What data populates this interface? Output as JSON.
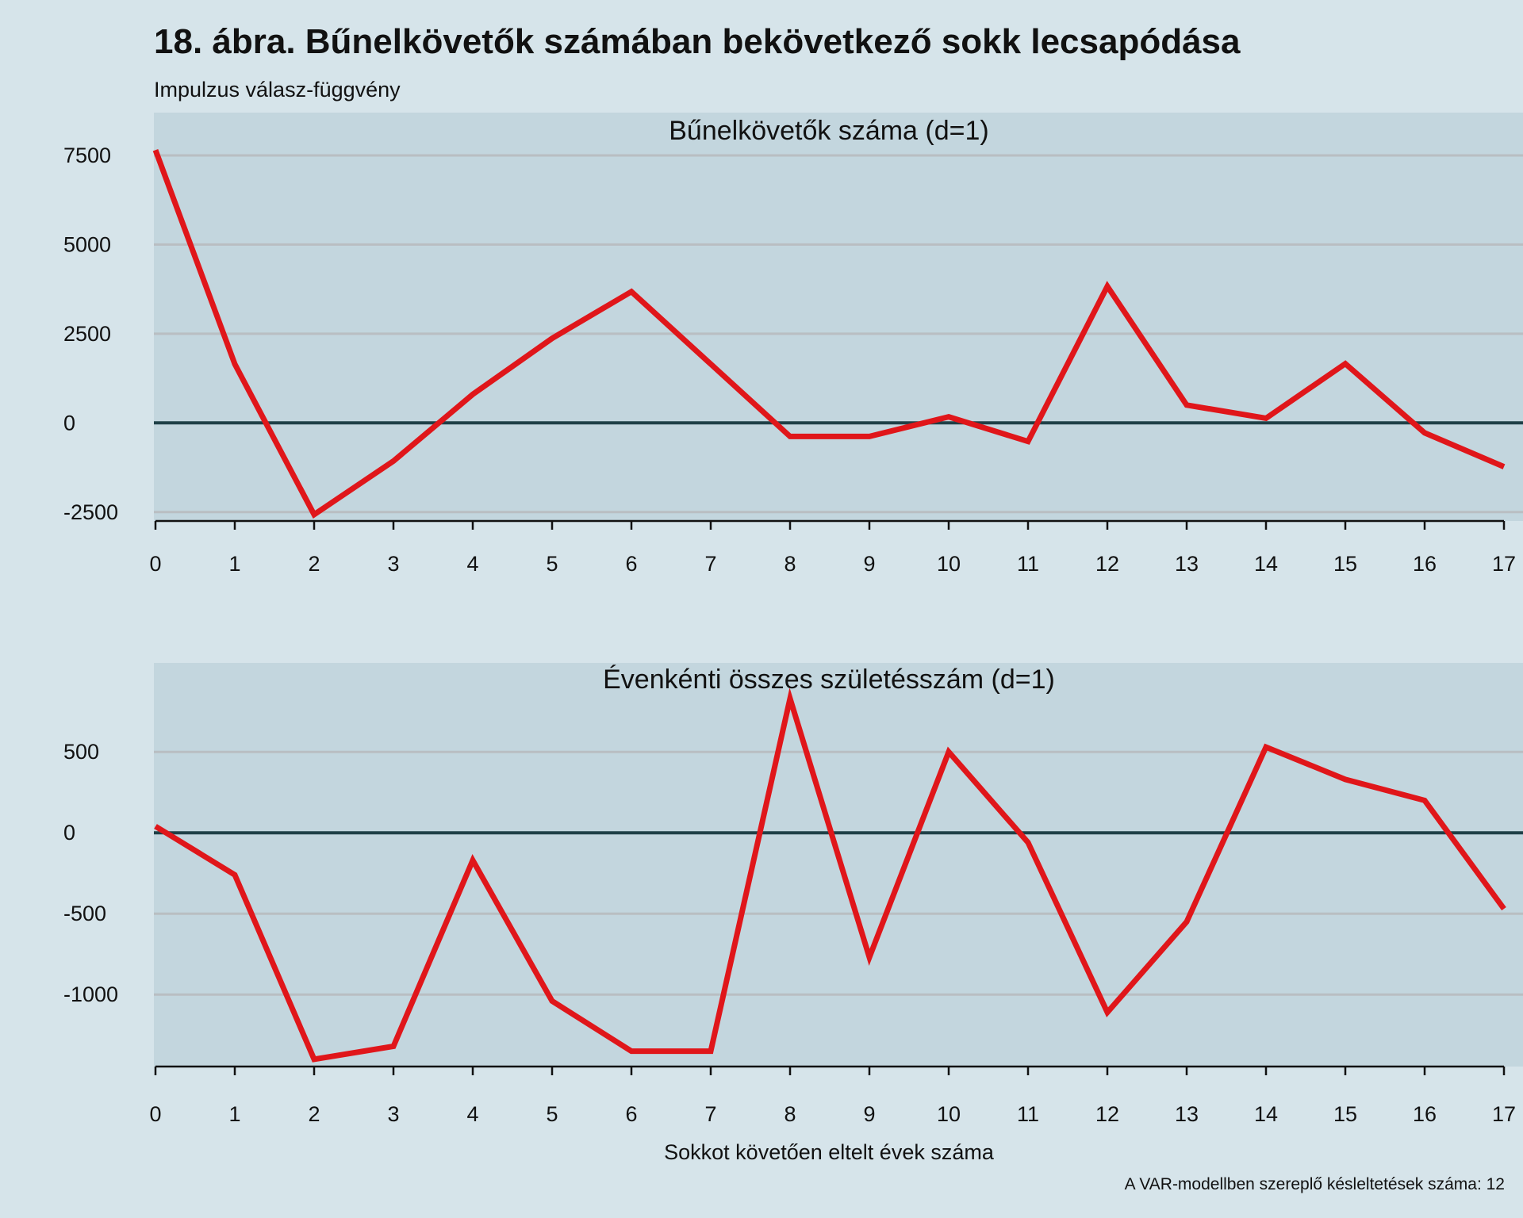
{
  "title": "18. ábra. Bűnelkövetők számában bekövetkező sokk lecsapódása",
  "subtitle": "Impulzus válasz-függvény",
  "xlabel": "Sokkot követően eltelt évek száma",
  "note": "A VAR-modellben szereplő késleltetések száma: 12",
  "colors": {
    "background": "#d6e4ea",
    "panel": "#c3d6de",
    "series": "#e0161a",
    "zero_line": "#1f4047",
    "grid": "#b9bec2"
  },
  "chart_data": [
    {
      "type": "line",
      "title": "Bűnelkövetők száma (d=1)",
      "x": [
        0,
        1,
        2,
        3,
        4,
        5,
        6,
        7,
        8,
        9,
        10,
        11,
        12,
        13,
        14,
        15,
        16,
        17
      ],
      "values": [
        7650,
        1650,
        -2570,
        -1070,
        800,
        2370,
        3680,
        1650,
        -380,
        -380,
        170,
        -520,
        3830,
        500,
        130,
        1660,
        -280,
        -1230
      ],
      "yticks": [
        7500,
        5000,
        2500,
        0,
        -2500
      ],
      "ytick_labels": [
        "7500",
        "5000",
        "2500",
        "0",
        "-2500"
      ],
      "xticks": [
        0,
        1,
        2,
        3,
        4,
        5,
        6,
        7,
        8,
        9,
        10,
        11,
        12,
        13,
        14,
        15,
        16,
        17
      ],
      "xtick_labels": [
        "0",
        "1",
        "2",
        "3",
        "4",
        "5",
        "6",
        "7",
        "8",
        "9",
        "10",
        "11",
        "12",
        "13",
        "14",
        "15",
        "16",
        "17"
      ],
      "ylim": [
        -2750,
        8700
      ],
      "xlim": [
        0,
        17.25
      ],
      "grid": true
    },
    {
      "type": "line",
      "title": "Évenkénti összes születésszám (d=1)",
      "x": [
        0,
        1,
        2,
        3,
        4,
        5,
        6,
        7,
        8,
        9,
        10,
        11,
        12,
        13,
        14,
        15,
        16,
        17
      ],
      "values": [
        40,
        -260,
        -1400,
        -1320,
        -170,
        -1040,
        -1350,
        -1350,
        830,
        -770,
        500,
        -60,
        -1110,
        -550,
        530,
        330,
        200,
        -470
      ],
      "yticks": [
        500,
        0,
        -500,
        -1000
      ],
      "ytick_labels": [
        "500",
        "0",
        "-500",
        "-1000"
      ],
      "xticks": [
        0,
        1,
        2,
        3,
        4,
        5,
        6,
        7,
        8,
        9,
        10,
        11,
        12,
        13,
        14,
        15,
        16,
        17
      ],
      "xtick_labels": [
        "0",
        "1",
        "2",
        "3",
        "4",
        "5",
        "6",
        "7",
        "8",
        "9",
        "10",
        "11",
        "12",
        "13",
        "14",
        "15",
        "16",
        "17"
      ],
      "ylim": [
        -1445,
        1050
      ],
      "xlim": [
        0,
        17.25
      ],
      "grid": true
    }
  ]
}
